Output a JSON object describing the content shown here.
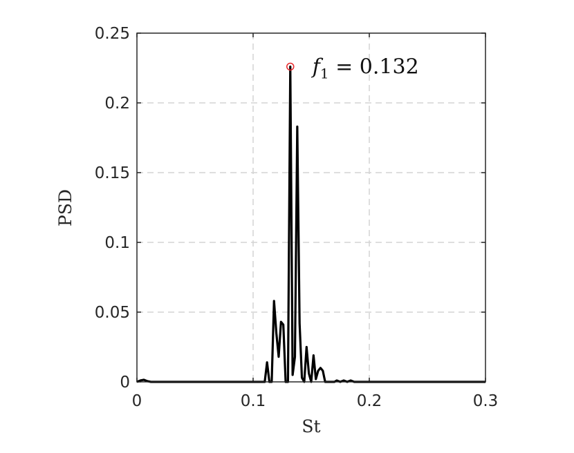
{
  "chart_data": {
    "type": "line",
    "title": "",
    "xlabel": "St",
    "ylabel": "PSD",
    "xlim": [
      0,
      0.3
    ],
    "ylim": [
      0,
      0.25
    ],
    "x_ticks": [
      "0",
      "0.1",
      "0.2",
      "0.3"
    ],
    "y_ticks": [
      "0",
      "0.05",
      "0.1",
      "0.15",
      "0.2",
      "0.25"
    ],
    "grid": true,
    "series": [
      {
        "color": "#000000",
        "points": [
          [
            0.0,
            0.0
          ],
          [
            0.003,
            0.001
          ],
          [
            0.006,
            0.0015
          ],
          [
            0.009,
            0.0005
          ],
          [
            0.012,
            0.0
          ],
          [
            0.04,
            0.0
          ],
          [
            0.08,
            0.0
          ],
          [
            0.1,
            0.0
          ],
          [
            0.108,
            0.0
          ],
          [
            0.11,
            0.0
          ],
          [
            0.112,
            0.014
          ],
          [
            0.114,
            0.0
          ],
          [
            0.116,
            0.0
          ],
          [
            0.118,
            0.058
          ],
          [
            0.12,
            0.035
          ],
          [
            0.122,
            0.018
          ],
          [
            0.124,
            0.043
          ],
          [
            0.126,
            0.041
          ],
          [
            0.128,
            0.0
          ],
          [
            0.13,
            0.0
          ],
          [
            0.132,
            0.226
          ],
          [
            0.134,
            0.005
          ],
          [
            0.136,
            0.018
          ],
          [
            0.138,
            0.183
          ],
          [
            0.14,
            0.042
          ],
          [
            0.142,
            0.003
          ],
          [
            0.144,
            0.0
          ],
          [
            0.146,
            0.025
          ],
          [
            0.148,
            0.006
          ],
          [
            0.15,
            0.0
          ],
          [
            0.152,
            0.019
          ],
          [
            0.154,
            0.002
          ],
          [
            0.156,
            0.008
          ],
          [
            0.158,
            0.01
          ],
          [
            0.16,
            0.008
          ],
          [
            0.162,
            0.0
          ],
          [
            0.164,
            0.0
          ],
          [
            0.17,
            0.0
          ],
          [
            0.172,
            0.001
          ],
          [
            0.175,
            0.0
          ],
          [
            0.178,
            0.001
          ],
          [
            0.181,
            0.0
          ],
          [
            0.184,
            0.001
          ],
          [
            0.187,
            0.0
          ],
          [
            0.22,
            0.0
          ],
          [
            0.26,
            0.0
          ],
          [
            0.3,
            0.0
          ]
        ]
      }
    ],
    "annotations": [
      {
        "x": 0.132,
        "y": 0.226,
        "label": "f1 = 0.132",
        "marker": "circle",
        "marker_color": "#e8262a"
      }
    ]
  }
}
